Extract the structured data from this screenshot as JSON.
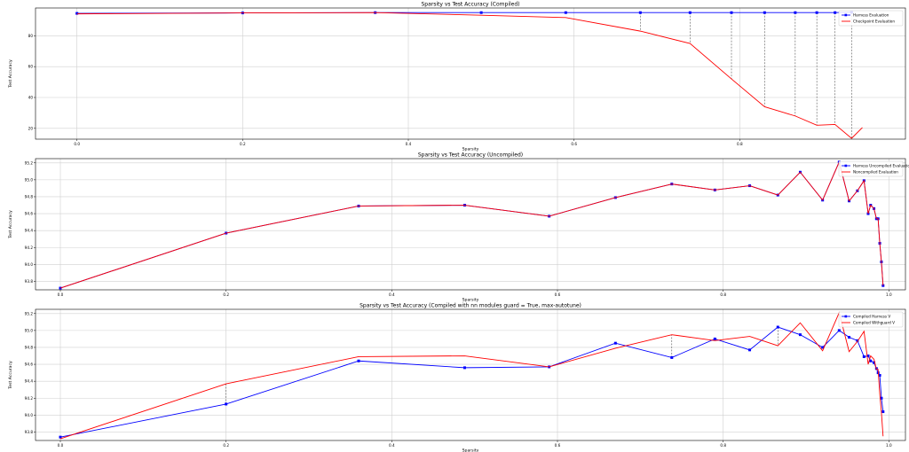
{
  "chart_data": [
    {
      "type": "line",
      "title": "Sparsity vs Test Accuracy (Compiled)",
      "xlabel": "Sparsity",
      "ylabel": "Test Accuracy",
      "xlim": [
        -0.05,
        1.0
      ],
      "ylim": [
        13,
        98
      ],
      "xticks": [
        0.0,
        0.2,
        0.4,
        0.6,
        0.8
      ],
      "yticks": [
        20,
        40,
        60,
        80
      ],
      "grid": true,
      "legend": "top-right",
      "vlines": [
        0.68,
        0.74,
        0.79,
        0.83,
        0.867,
        0.893,
        0.915,
        0.935
      ],
      "series": [
        {
          "name": "Harness Evaluation",
          "color": "#0000ff",
          "marker": "square",
          "x": [
            0.0,
            0.2,
            0.36,
            0.488,
            0.59,
            0.68,
            0.74,
            0.79,
            0.83,
            0.867,
            0.893,
            0.915,
            0.935
          ],
          "y": [
            94.5,
            94.8,
            95.0,
            95.0,
            95.0,
            95.0,
            95.0,
            95.0,
            95.0,
            95.0,
            95.0,
            95.0,
            95.2
          ]
        },
        {
          "name": "Checkpoint Evaluation",
          "color": "#ff0000",
          "marker": "none",
          "x": [
            0.0,
            0.2,
            0.36,
            0.488,
            0.59,
            0.68,
            0.74,
            0.79,
            0.83,
            0.867,
            0.893,
            0.915,
            0.935,
            0.948
          ],
          "y": [
            94.2,
            94.8,
            95.0,
            93.3,
            91.8,
            83.0,
            75.0,
            52.0,
            34.0,
            28.0,
            22.0,
            22.5,
            13.5,
            20.5
          ]
        }
      ]
    },
    {
      "type": "line",
      "title": "Sparsity vs Test Accuracy (Uncompiled)",
      "xlabel": "Sparsity",
      "ylabel": "Test Accuracy",
      "xlim": [
        -0.03,
        1.02
      ],
      "ylim": [
        93.7,
        95.25
      ],
      "xticks": [
        0.0,
        0.2,
        0.4,
        0.6,
        0.8,
        1.0
      ],
      "yticks": [
        93.8,
        94.0,
        94.2,
        94.4,
        94.6,
        94.8,
        95.0,
        95.2
      ],
      "grid": true,
      "legend": "top-right",
      "vlines": [],
      "series": [
        {
          "name": "Harness Uncompiled Evaluation",
          "color": "#0000ff",
          "marker": "square",
          "x": [
            0.0,
            0.2,
            0.36,
            0.488,
            0.59,
            0.67,
            0.738,
            0.79,
            0.832,
            0.866,
            0.893,
            0.92,
            0.94,
            0.952,
            0.962,
            0.97,
            0.975,
            0.978,
            0.982,
            0.985,
            0.987,
            0.989,
            0.991,
            0.993
          ],
          "y": [
            93.72,
            94.37,
            94.69,
            94.7,
            94.57,
            94.79,
            94.95,
            94.88,
            94.93,
            94.82,
            95.09,
            94.76,
            95.21,
            94.75,
            94.87,
            94.99,
            94.6,
            94.7,
            94.66,
            94.54,
            94.54,
            94.25,
            94.03,
            93.75
          ]
        },
        {
          "name": "Noncompiled Evaluation",
          "color": "#ff0000",
          "marker": "none",
          "x": [
            0.0,
            0.2,
            0.36,
            0.488,
            0.59,
            0.67,
            0.738,
            0.79,
            0.832,
            0.866,
            0.893,
            0.92,
            0.94,
            0.952,
            0.962,
            0.97,
            0.975,
            0.978,
            0.982,
            0.985,
            0.987,
            0.989,
            0.991,
            0.993
          ],
          "y": [
            93.72,
            94.37,
            94.69,
            94.7,
            94.57,
            94.79,
            94.95,
            94.88,
            94.93,
            94.82,
            95.09,
            94.76,
            95.21,
            94.75,
            94.87,
            94.99,
            94.6,
            94.7,
            94.66,
            94.54,
            94.54,
            94.25,
            94.03,
            93.75
          ]
        }
      ]
    },
    {
      "type": "line",
      "title": "Sparsity vs Test Accuracy (Compiled with nn modules guard = True, max-autotune)",
      "xlabel": "Sparsity",
      "ylabel": "Test Accuracy",
      "xlim": [
        -0.03,
        1.02
      ],
      "ylim": [
        93.7,
        95.25
      ],
      "xticks": [
        0.0,
        0.2,
        0.4,
        0.6,
        0.8,
        1.0
      ],
      "yticks": [
        93.8,
        94.0,
        94.2,
        94.4,
        94.6,
        94.8,
        95.0,
        95.2
      ],
      "grid": true,
      "legend": "top-right",
      "vlines": [
        0.2,
        0.738,
        0.866
      ],
      "series": [
        {
          "name": "Compiled Harness V",
          "color": "#0000ff",
          "marker": "square",
          "x": [
            0.0,
            0.2,
            0.36,
            0.488,
            0.59,
            0.67,
            0.738,
            0.79,
            0.832,
            0.866,
            0.893,
            0.92,
            0.94,
            0.952,
            0.962,
            0.97,
            0.975,
            0.978,
            0.982,
            0.985,
            0.987,
            0.989,
            0.991,
            0.993
          ],
          "y": [
            93.74,
            94.13,
            94.64,
            94.56,
            94.57,
            94.85,
            94.68,
            94.9,
            94.77,
            95.04,
            94.95,
            94.8,
            95.0,
            94.92,
            94.88,
            94.69,
            94.7,
            94.64,
            94.62,
            94.55,
            94.5,
            94.47,
            94.2,
            94.04
          ]
        },
        {
          "name": "Compiled Withguard V",
          "color": "#ff0000",
          "marker": "none",
          "x": [
            0.0,
            0.2,
            0.36,
            0.488,
            0.59,
            0.67,
            0.738,
            0.79,
            0.832,
            0.866,
            0.893,
            0.92,
            0.94,
            0.952,
            0.962,
            0.97,
            0.975,
            0.978,
            0.982,
            0.985,
            0.987,
            0.989,
            0.991,
            0.993
          ],
          "y": [
            93.72,
            94.37,
            94.69,
            94.7,
            94.57,
            94.79,
            94.95,
            94.88,
            94.93,
            94.82,
            95.09,
            94.76,
            95.21,
            94.75,
            94.87,
            94.99,
            94.6,
            94.7,
            94.66,
            94.54,
            94.54,
            94.25,
            94.03,
            93.75
          ]
        }
      ]
    }
  ]
}
